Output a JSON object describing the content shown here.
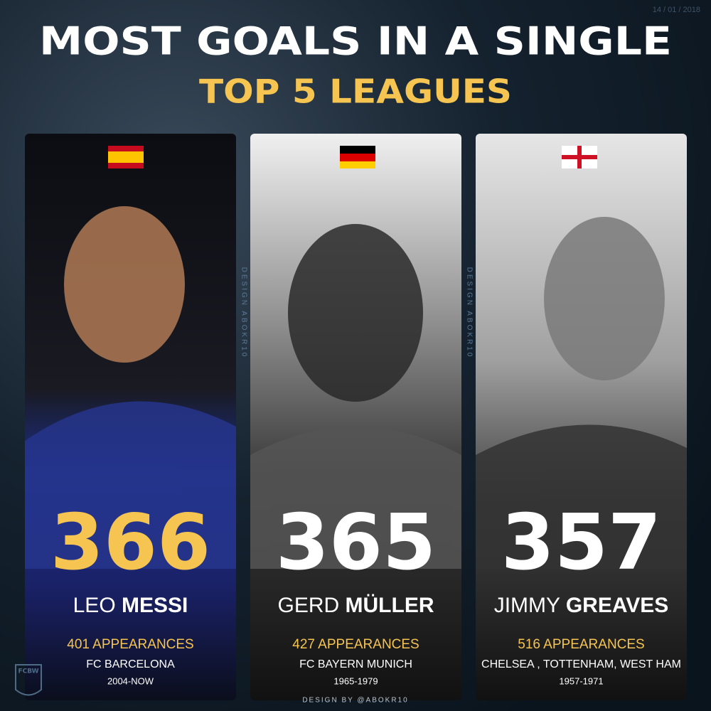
{
  "header": {
    "date": "14 / 01 / 2018",
    "title": "MOST GOALS IN A SINGLE",
    "subtitle": "TOP 5 LEAGUES"
  },
  "cards": [
    {
      "goals": 366,
      "first_name": "LEO",
      "last_name": "MESSI",
      "appearances": "401 APPEARANCES",
      "clubs": "FC BARCELONA",
      "years": "2004-NOW"
    },
    {
      "goals": 365,
      "first_name": "GERD",
      "last_name": "MÜLLER",
      "appearances": "427 APPEARANCES",
      "clubs": "FC BAYERN MUNICH",
      "years": "1965-1979"
    },
    {
      "goals": 357,
      "first_name": "JIMMY",
      "last_name": "GREAVES",
      "appearances": "516 APPEARANCES",
      "clubs": "CHELSEA , TOTTENHAM, WEST HAM",
      "years": "1957-1971"
    }
  ],
  "watermark": "DESIGN ABOKR10",
  "footer": "DESIGN BY @ABOKR10",
  "logo": "FCBW"
}
